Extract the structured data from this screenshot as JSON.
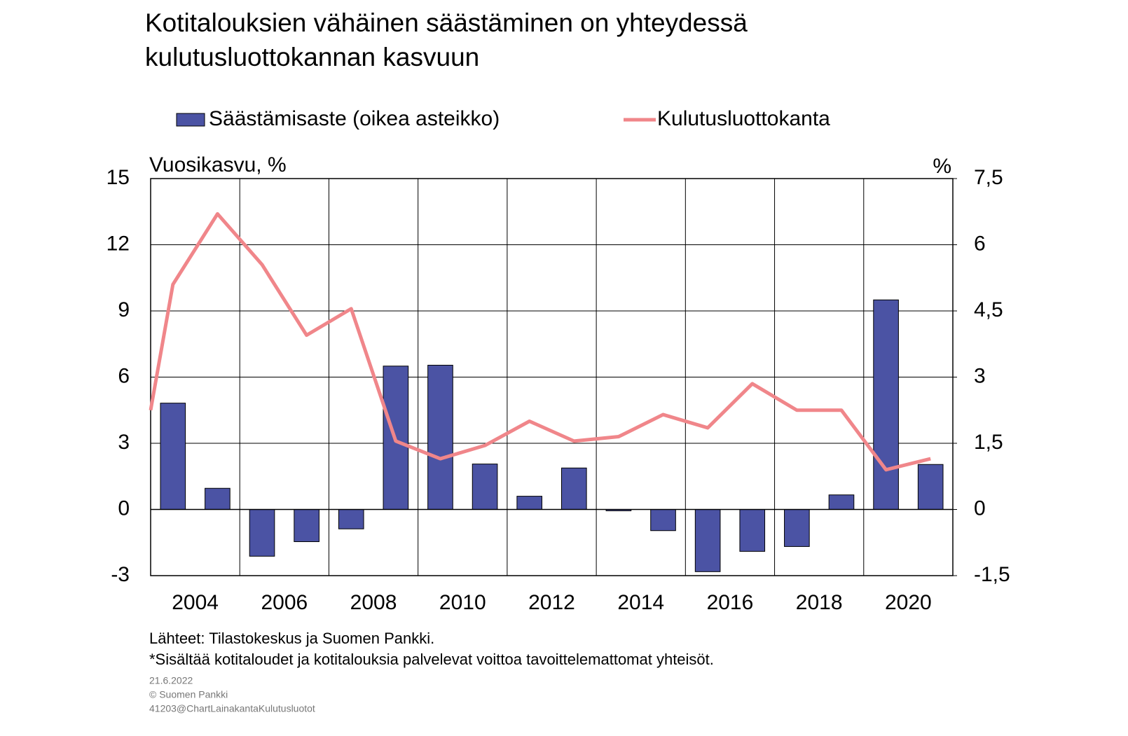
{
  "chart_data": {
    "type": "bar+line",
    "title_lines": [
      "Kotitalouksien vähäinen säästäminen on yhteydessä",
      "kulutusluottokannan kasvuun"
    ],
    "y_label": "Vuosikasvu,  %",
    "y2_label": "%",
    "xlim": [
      2003,
      2021
    ],
    "xticks": [
      2004,
      2006,
      2008,
      2010,
      2012,
      2014,
      2016,
      2018,
      2020
    ],
    "xgrid": [
      2005,
      2007,
      2009,
      2011,
      2013,
      2015,
      2017,
      2019
    ],
    "ylim": [
      -3,
      15
    ],
    "yticks": [
      -3,
      0,
      3,
      6,
      9,
      12,
      15
    ],
    "y2lim": [
      -1.5,
      7.5
    ],
    "y2ticks": [
      {
        "value": -1.5,
        "label": "-1,5"
      },
      0,
      {
        "value": 1.5,
        "label": "1,5"
      },
      3,
      {
        "value": 4.5,
        "label": "4,5"
      },
      6,
      {
        "value": 7.5,
        "label": "7,5"
      }
    ],
    "grid": true,
    "series": [
      {
        "name": "Säästämisaste (oikea asteikko)",
        "type": "bar",
        "axis": "y2",
        "color": "#4b53a4",
        "x": [
          2003.5,
          2004.5,
          2005.5,
          2006.5,
          2007.5,
          2008.5,
          2009.5,
          2010.5,
          2011.5,
          2012.5,
          2013.5,
          2014.5,
          2015.5,
          2016.5,
          2017.5,
          2018.5,
          2019.5,
          2020.5
        ],
        "values": [
          2.41,
          0.48,
          -1.06,
          -0.73,
          -0.44,
          3.25,
          3.27,
          1.03,
          0.3,
          0.94,
          -0.03,
          -0.48,
          -1.41,
          -0.95,
          -0.84,
          0.33,
          4.75,
          1.02
        ]
      },
      {
        "name": "Kulutusluottokanta",
        "type": "line",
        "color": "#f0868a",
        "x": [
          2003,
          2003.5,
          2004.5,
          2005.5,
          2006.5,
          2007.5,
          2008.5,
          2009.5,
          2010.5,
          2011.5,
          2012.5,
          2013.5,
          2014.5,
          2015.5,
          2016.5,
          2017.5,
          2018.5,
          2019.5,
          2020.5
        ],
        "values": [
          4.5,
          10.2,
          13.4,
          11.1,
          7.9,
          9.1,
          3.1,
          2.3,
          2.9,
          4.0,
          3.1,
          3.3,
          4.3,
          3.7,
          5.7,
          4.5,
          4.5,
          1.8,
          2.3
        ]
      }
    ],
    "source": "Lähteet:  Tilastokeskus  ja  Suomen  Pankki.",
    "note": "*Sisältää  kotitaloudet  ja  kotitalouksia  palvelevat  voittoa  tavoittelemattomat  yhteisöt.",
    "date": "21.6.2022",
    "copyright": "© Suomen Pankki",
    "code": "41203@ChartLainakantaKulutusluotot"
  }
}
